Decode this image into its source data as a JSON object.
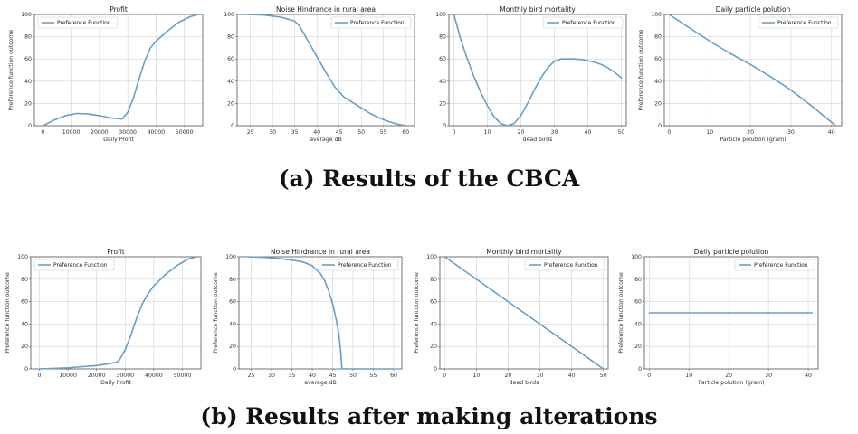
{
  "colors": {
    "curve": "#6a9ec5"
  },
  "captions": {
    "a": "(a) Results of the CBCA",
    "b": "(b) Results after making alterations"
  },
  "chart_data": [
    {
      "id": "a-profit",
      "type": "line",
      "title": "Profit",
      "xlabel": "Daily Profit",
      "ylabel": "Preference function outcome",
      "xlim": [
        -3000,
        56500
      ],
      "ylim": [
        0,
        100
      ],
      "xticks": [
        0,
        10000,
        20000,
        30000,
        40000,
        50000
      ],
      "yticks": [
        0,
        20,
        40,
        60,
        80,
        100
      ],
      "legend": "top-left",
      "series": [
        {
          "name": "Preference Function",
          "x": [
            0,
            4000,
            8000,
            12000,
            16000,
            20000,
            24000,
            28000,
            30000,
            32000,
            34000,
            36000,
            38000,
            40000,
            44000,
            48000,
            52000,
            55000
          ],
          "y": [
            0,
            5,
            9,
            11,
            10.5,
            9,
            7,
            6,
            12,
            25,
            42,
            58,
            70,
            76,
            85,
            93,
            98,
            100
          ]
        }
      ]
    },
    {
      "id": "a-noise",
      "type": "line",
      "title": "Noise Hindrance in rural area",
      "xlabel": "average dB",
      "ylabel": "",
      "xlim": [
        22,
        62
      ],
      "ylim": [
        0,
        100
      ],
      "xticks": [
        25,
        30,
        35,
        40,
        45,
        50,
        55,
        60
      ],
      "yticks": [
        0,
        20,
        40,
        60,
        80,
        100
      ],
      "legend": "top-right",
      "series": [
        {
          "name": "Preference Function",
          "x": [
            24,
            28,
            32,
            35,
            36,
            38,
            40,
            42,
            44,
            46,
            48,
            50,
            52,
            54,
            56,
            58,
            60
          ],
          "y": [
            100,
            99.5,
            97.5,
            94,
            90,
            76,
            62,
            48,
            35,
            26,
            21,
            16,
            11,
            7,
            4,
            1.5,
            0
          ]
        }
      ]
    },
    {
      "id": "a-birds",
      "type": "line",
      "title": "Monthly bird mortality",
      "xlabel": "dead birds",
      "ylabel": "",
      "xlim": [
        -1.5,
        51.5
      ],
      "ylim": [
        0,
        100
      ],
      "xticks": [
        0,
        10,
        20,
        30,
        40,
        50
      ],
      "yticks": [
        0,
        20,
        40,
        60,
        80,
        100
      ],
      "legend": "top-right",
      "series": [
        {
          "name": "Preference Function",
          "x": [
            0,
            2,
            4,
            6,
            8,
            10,
            12,
            14,
            16,
            18,
            20,
            22,
            24,
            26,
            28,
            30,
            32,
            34,
            36,
            38,
            40,
            42,
            44,
            46,
            48,
            50
          ],
          "y": [
            100,
            78,
            60,
            44,
            30,
            18,
            8,
            2,
            0,
            2,
            9,
            20,
            32,
            43,
            52,
            58,
            60,
            60,
            60,
            59.5,
            58.5,
            57,
            55,
            52,
            48,
            43
          ]
        }
      ]
    },
    {
      "id": "a-particle",
      "type": "line",
      "title": "Daily particle polution",
      "xlabel": "Particle polution (gram)",
      "ylabel": "Preference function outcome",
      "xlim": [
        -1.2,
        42.5
      ],
      "ylim": [
        0,
        100
      ],
      "xticks": [
        0,
        10,
        20,
        30,
        40
      ],
      "yticks": [
        0,
        20,
        40,
        60,
        80,
        100
      ],
      "legend": "top-right",
      "series": [
        {
          "name": "Preference Function",
          "x": [
            0,
            5,
            10,
            15,
            20,
            25,
            30,
            35,
            38,
            41
          ],
          "y": [
            100,
            88,
            76,
            65,
            55,
            44,
            32,
            18,
            9,
            0
          ]
        }
      ]
    },
    {
      "id": "b-profit",
      "type": "line",
      "title": "Profit",
      "xlabel": "Daily Profit",
      "ylabel": "Preference function outcome",
      "xlim": [
        -3000,
        56500
      ],
      "ylim": [
        0,
        100
      ],
      "xticks": [
        0,
        10000,
        20000,
        30000,
        40000,
        50000
      ],
      "yticks": [
        0,
        20,
        40,
        60,
        80,
        100
      ],
      "legend": "top-left",
      "series": [
        {
          "name": "Preference Function",
          "x": [
            0,
            5000,
            10000,
            15000,
            20000,
            24000,
            27000,
            28000,
            30000,
            32000,
            34000,
            36000,
            38000,
            40000,
            44000,
            48000,
            52000,
            55000
          ],
          "y": [
            0,
            0.5,
            1,
            2,
            3,
            4.5,
            6,
            8,
            17,
            30,
            45,
            58,
            67,
            74,
            84,
            92,
            98,
            100
          ]
        }
      ]
    },
    {
      "id": "b-noise",
      "type": "line",
      "title": "Noise Hindrance in rural area",
      "xlabel": "average dB",
      "ylabel": "Preference function outcome",
      "xlim": [
        22,
        62
      ],
      "ylim": [
        0,
        100
      ],
      "xticks": [
        25,
        30,
        35,
        40,
        45,
        50,
        55,
        60
      ],
      "yticks": [
        0,
        20,
        40,
        60,
        80,
        100
      ],
      "legend": "top-right",
      "series": [
        {
          "name": "Preference Function",
          "x": [
            24,
            28,
            32,
            36,
            38,
            40,
            42,
            43,
            44,
            45,
            46,
            46.5,
            47,
            47.3,
            47.7,
            48,
            50,
            55,
            60
          ],
          "y": [
            100,
            99.5,
            98.5,
            96.5,
            95,
            92,
            85,
            79,
            70,
            58,
            42,
            32,
            15,
            0,
            0,
            0,
            0,
            0,
            0
          ]
        }
      ]
    },
    {
      "id": "b-birds",
      "type": "line",
      "title": "Monthly bird mortality",
      "xlabel": "dead birds",
      "ylabel": "Preference function outcome",
      "xlim": [
        -1.5,
        51.5
      ],
      "ylim": [
        0,
        100
      ],
      "xticks": [
        0,
        10,
        20,
        30,
        40,
        50
      ],
      "yticks": [
        0,
        20,
        40,
        60,
        80,
        100
      ],
      "legend": "top-right",
      "series": [
        {
          "name": "Preference Function",
          "x": [
            0,
            50
          ],
          "y": [
            100,
            0
          ]
        }
      ]
    },
    {
      "id": "b-particle",
      "type": "line",
      "title": "Daily particle polution",
      "xlabel": "Particle polution (gram)",
      "ylabel": "Preference function outcome",
      "xlim": [
        -1.2,
        42.5
      ],
      "ylim": [
        0,
        100
      ],
      "xticks": [
        0,
        10,
        20,
        30,
        40
      ],
      "yticks": [
        0,
        20,
        40,
        60,
        80,
        100
      ],
      "legend": "top-right",
      "series": [
        {
          "name": "Preference Function",
          "x": [
            0,
            41
          ],
          "y": [
            50,
            50
          ]
        }
      ]
    }
  ]
}
